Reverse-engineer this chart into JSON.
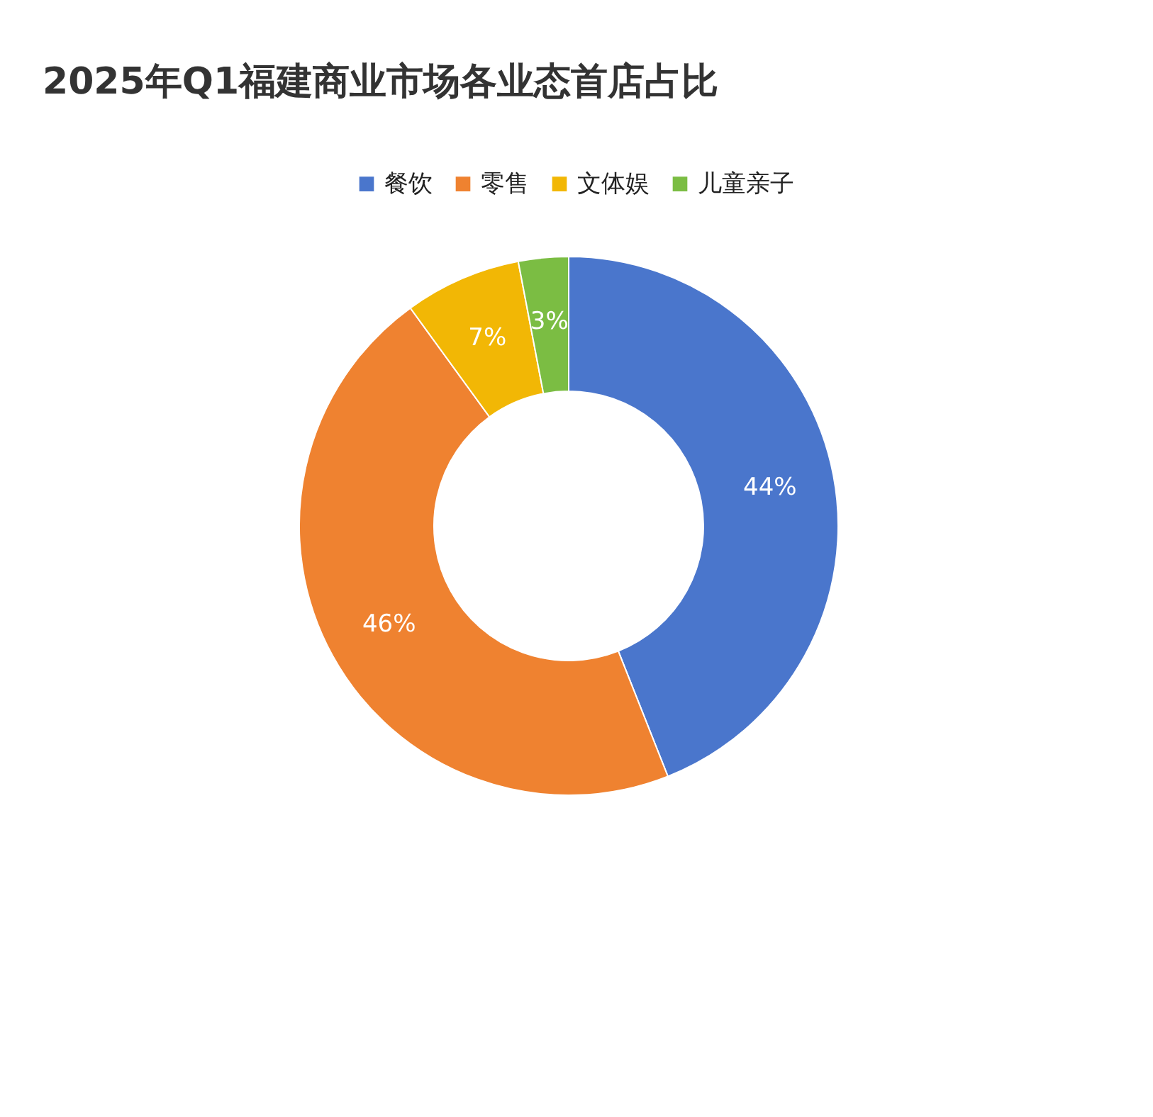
{
  "chart_data": {
    "type": "donut",
    "title": "2025年Q1福建商业市场各业态首店占比",
    "categories": [
      "餐饮",
      "零售",
      "文体娱",
      "儿童亲子"
    ],
    "values": [
      44,
      46,
      7,
      3
    ],
    "colors": [
      "#4a76cc",
      "#ef8230",
      "#f2b705",
      "#7bbd43"
    ],
    "value_labels": [
      "44%",
      "46%",
      "7%",
      "3%"
    ],
    "legend": "top"
  }
}
